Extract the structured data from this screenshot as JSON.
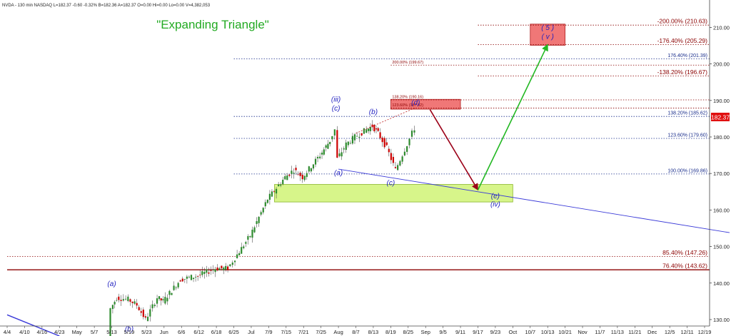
{
  "header": {
    "info": "NVDA - 130 min  NASDAQ   L=182.37  -0.60  -0.32%   B=182.36   A=182.37   O=0.00   Hi=0.00   Lo=0.00   V=4,382,053"
  },
  "title": "\"Expanding Triangle\"",
  "price_badge": "182.37",
  "colors": {
    "bull_candle": "#2e8b2e",
    "bear_candle": "#cc0000",
    "wave_label": "#1f1fbf",
    "fib_dark": "#8b0000",
    "fib_blue": "#1a2e8c",
    "triangle_line": "#3a3ad8",
    "up_arrow": "#22b822",
    "down_arrow": "#9b0018",
    "green_zone": "#d7f58a",
    "red_zone": "#f07777",
    "title_green": "#22aa22"
  },
  "chart_data": {
    "type": "candlestick",
    "symbol": "NVDA",
    "interval": "130 min",
    "y_axis": {
      "position": "right",
      "ylim": [
        125.5,
        217.5
      ],
      "ticks": [
        130,
        140,
        150,
        160,
        170,
        180,
        190,
        200,
        210
      ],
      "tick_labels": [
        "130.00",
        "140.00",
        "150.00",
        "160.00",
        "170.00",
        "180.00",
        "190.00",
        "200.00",
        "210.00"
      ]
    },
    "x_axis": {
      "tick_labels": [
        "4/4",
        "4/10",
        "4/16",
        "4/23",
        "May",
        "5/7",
        "5/13",
        "5/19",
        "5/23",
        "Jun",
        "6/6",
        "6/12",
        "6/18",
        "6/25",
        "Jul",
        "7/9",
        "7/15",
        "7/21",
        "7/25",
        "Aug",
        "8/7",
        "8/13",
        "8/19",
        "8/25",
        "Sep",
        "9/5",
        "9/11",
        "9/17",
        "9/23",
        "Oct",
        "10/7",
        "10/13",
        "10/21",
        "Nov",
        "11/7",
        "11/13",
        "11/21",
        "Dec",
        "12/5",
        "12/11",
        "12/19"
      ]
    },
    "last_price": 182.37,
    "price_path": [
      {
        "date": "5/12",
        "price": 125
      },
      {
        "date": "5/13",
        "price": 133
      },
      {
        "date": "5/15",
        "price": 136
      },
      {
        "date": "5/19",
        "price": 135.5
      },
      {
        "date": "5/21",
        "price": 134
      },
      {
        "date": "5/23",
        "price": 130
      },
      {
        "date": "5/29",
        "price": 136
      },
      {
        "date": "Jun",
        "price": 135
      },
      {
        "date": "6/6",
        "price": 141
      },
      {
        "date": "6/12",
        "price": 142
      },
      {
        "date": "6/18",
        "price": 144
      },
      {
        "date": "6/23",
        "price": 144
      },
      {
        "date": "6/25",
        "price": 146
      },
      {
        "date": "7/1",
        "price": 153
      },
      {
        "date": "7/9",
        "price": 163
      },
      {
        "date": "7/15",
        "price": 169
      },
      {
        "date": "7/18",
        "price": 171
      },
      {
        "date": "7/21",
        "price": 169
      },
      {
        "date": "7/25",
        "price": 175
      },
      {
        "date": "7/29",
        "price": 179
      },
      {
        "date": "7/31",
        "price": 182
      },
      {
        "date": "Aug",
        "price": 174
      },
      {
        "date": "8/4",
        "price": 178
      },
      {
        "date": "8/7",
        "price": 180
      },
      {
        "date": "8/11",
        "price": 182
      },
      {
        "date": "8/13",
        "price": 183
      },
      {
        "date": "8/15",
        "price": 181
      },
      {
        "date": "8/18",
        "price": 177
      },
      {
        "date": "8/21",
        "price": 171
      },
      {
        "date": "8/25",
        "price": 178
      },
      {
        "date": "8/27",
        "price": 181
      },
      {
        "date": "8/28",
        "price": 182.37
      }
    ],
    "fib_levels": [
      {
        "label": "-200.00% (210.63)",
        "price": 210.63,
        "line_start": "9/17",
        "style": "dotted",
        "color": "#8b0000"
      },
      {
        "label": "-176.40% (205.29)",
        "price": 205.29,
        "line_start": "9/17",
        "style": "dotted",
        "color": "#8b0000"
      },
      {
        "label": "176.40% (201.39)",
        "price": 201.39,
        "line_start": "6/25",
        "style": "dotted",
        "color": "#1a2e8c"
      },
      {
        "label": "200.00% (199.67)",
        "price": 199.67,
        "line_start": "8/19",
        "style": "dotted",
        "color": "#8b0000"
      },
      {
        "label": "-138.20% (196.67)",
        "price": 196.67,
        "line_start": "9/17",
        "style": "dotted",
        "color": "#8b0000"
      },
      {
        "label": "138.20% (190.16)",
        "price": 190.16,
        "line_start": "8/19",
        "style": "dotted",
        "color": "#8b0000"
      },
      {
        "label": "123.60% (187.92)",
        "price": 187.92,
        "line_start": "8/19",
        "style": "dotted",
        "color": "#8b0000"
      },
      {
        "label": "138.20% (185.62)",
        "price": 185.62,
        "line_start": "6/25",
        "style": "dotted",
        "color": "#1a2e8c"
      },
      {
        "label": "123.60% (179.60)",
        "price": 179.6,
        "line_start": "6/25",
        "style": "dotted",
        "color": "#1a2e8c"
      },
      {
        "label": "100.00% (169.86)",
        "price": 169.86,
        "line_start": "6/25",
        "style": "dotted",
        "color": "#1a2e8c"
      },
      {
        "label": "85.40% (147.26)",
        "price": 147.26,
        "line_start": "4/4",
        "style": "dotted",
        "color": "#8b0000"
      },
      {
        "label": "76.40% (143.62)",
        "price": 143.62,
        "line_start": "4/4",
        "style": "solid",
        "color": "#8b0000"
      }
    ],
    "zones": [
      {
        "name": "wave-e-target-zone",
        "color": "green",
        "price_low": 162.2,
        "price_high": 167.0,
        "date_start": "7/11",
        "date_end": "Oct"
      },
      {
        "name": "wave-d-target-zone",
        "color": "red",
        "price_low": 187.6,
        "price_high": 190.3,
        "date_start": "8/19",
        "date_end": "9/11"
      },
      {
        "name": "wave-5-target-zone",
        "color": "red",
        "price_low": 205.1,
        "price_high": 210.9,
        "date_start": "10/7",
        "date_end": "10/21"
      }
    ],
    "wave_labels": [
      {
        "text": "(a)",
        "date": "5/13",
        "price": 139.2
      },
      {
        "text": "(b)",
        "date": "5/19",
        "price": 126.8
      },
      {
        "text": "(iii)",
        "date": "7/31",
        "price": 189.7
      },
      {
        "text": "(c)",
        "date": "7/31",
        "price": 187.2
      },
      {
        "text": "(a)",
        "date": "Aug",
        "price": 169.5
      },
      {
        "text": "(b)",
        "date": "8/13",
        "price": 186.2
      },
      {
        "text": "(c)",
        "date": "8/19",
        "price": 166.8
      },
      {
        "text": "(d)",
        "date": "8/28",
        "price": 188.8
      },
      {
        "text": "(e)",
        "date": "9/23",
        "price": 163.2
      },
      {
        "text": "(iv)",
        "date": "9/23",
        "price": 161.0
      },
      {
        "text": "( 5 )",
        "date": "10/13",
        "price": 209.3
      },
      {
        "text": "( v )",
        "date": "10/13",
        "price": 206.9
      }
    ],
    "projections": [
      {
        "name": "projection-to-d",
        "from": {
          "date": "8/7",
          "price": 181
        },
        "to": {
          "date": "8/28",
          "price": 188
        }
      },
      {
        "name": "projection-d-to-e",
        "from": {
          "date": "9/2",
          "price": 187.5
        },
        "to": {
          "date": "9/17",
          "price": 165.5
        }
      },
      {
        "name": "projection-e-to-5",
        "from": {
          "date": "9/17",
          "price": 165.5
        },
        "to": {
          "date": "10/13",
          "price": 205.3
        }
      }
    ],
    "trendlines": [
      {
        "name": "triangle-lower-line",
        "from": {
          "date": "Aug",
          "price": 171.2
        },
        "to": {
          "date": "12/19",
          "price": 153.8
        }
      },
      {
        "name": "prior-trendline",
        "from": {
          "date": "4/4",
          "price": 131.3
        },
        "to": {
          "date": "4/23",
          "price": 125.5
        }
      }
    ],
    "annotations": [
      {
        "text": "\"Expanding Triangle\""
      }
    ]
  }
}
